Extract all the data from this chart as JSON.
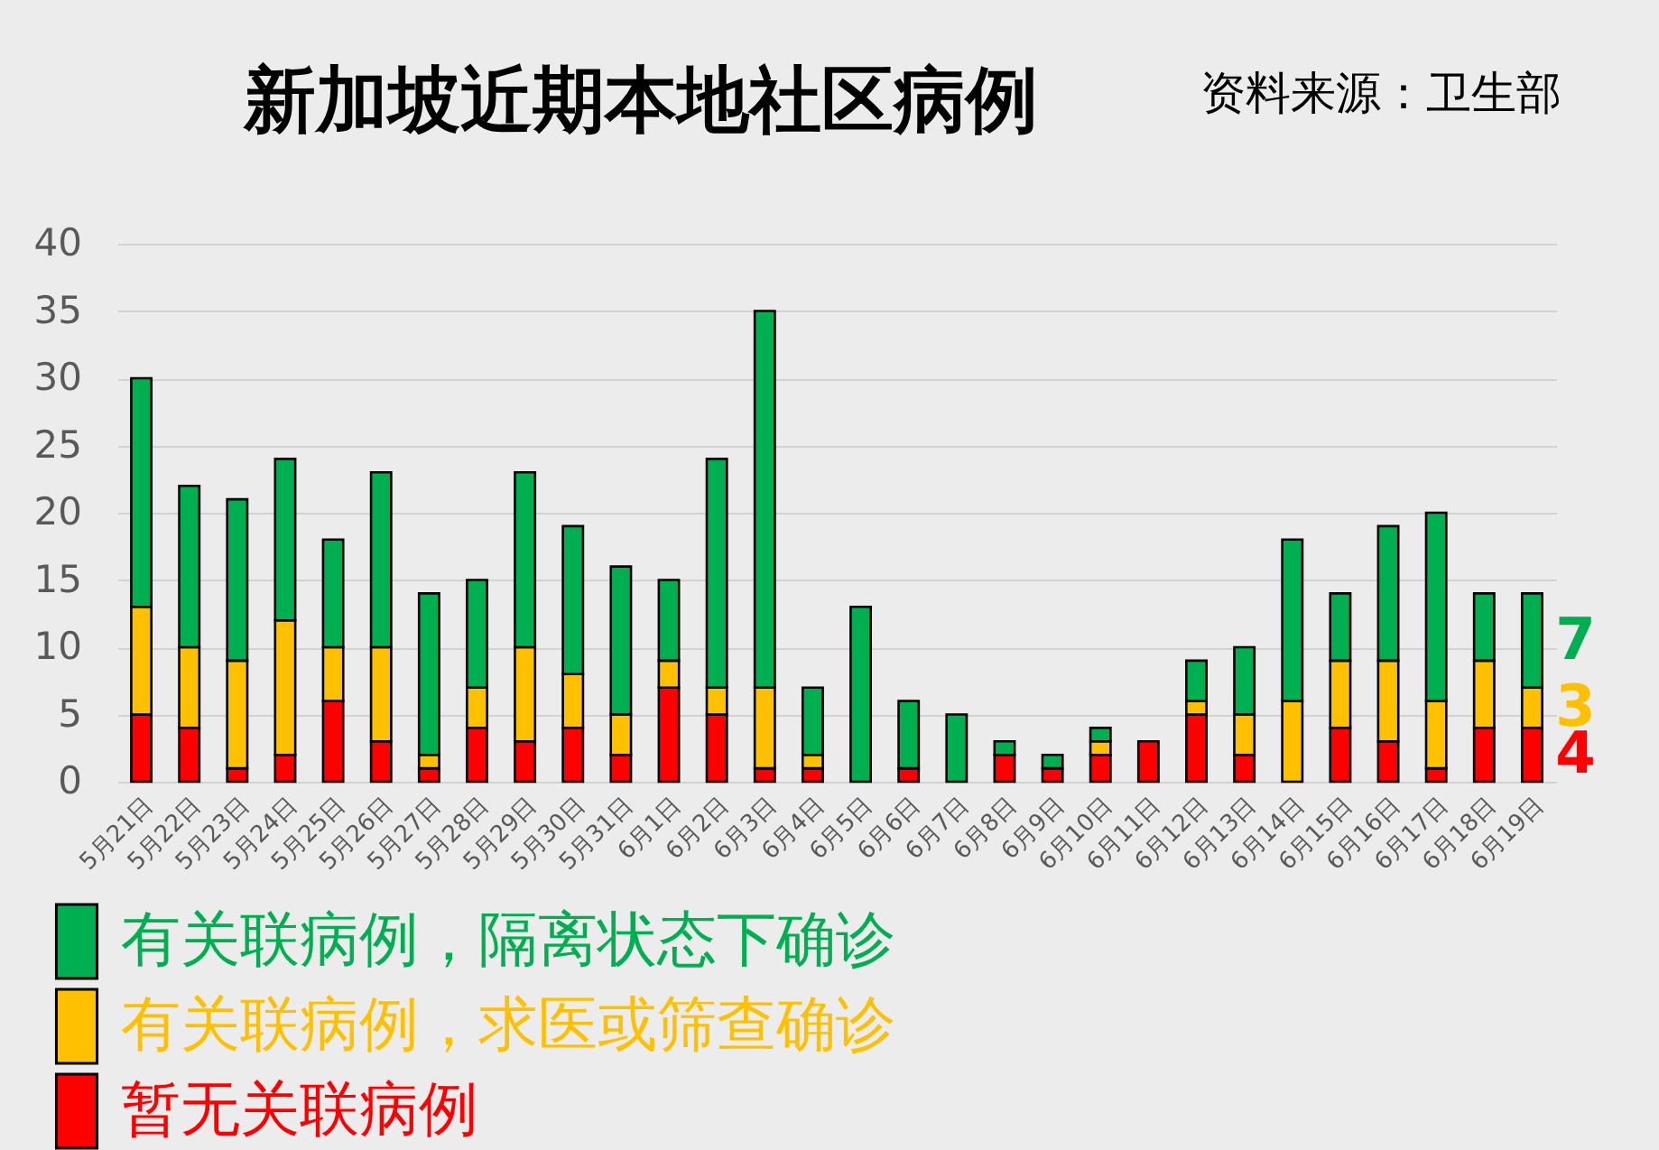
{
  "chart_data": {
    "type": "bar",
    "title": "新加坡近期本地社区病例",
    "annotations": [
      "资料来源：卫生部"
    ],
    "categories": [
      "5月21日",
      "5月22日",
      "5月23日",
      "5月24日",
      "5月25日",
      "5月26日",
      "5月27日",
      "5月28日",
      "5月29日",
      "5月30日",
      "5月31日",
      "6月1日",
      "6月2日",
      "6月3日",
      "6月4日",
      "6月5日",
      "6月6日",
      "6月7日",
      "6月8日",
      "6月9日",
      "6月10日",
      "6月11日",
      "6月12日",
      "6月13日",
      "6月14日",
      "6月15日",
      "6月16日",
      "6月17日",
      "6月18日",
      "6月19日"
    ],
    "series": [
      {
        "name": "暂无关联病例",
        "color": "#ff0000",
        "values": [
          5,
          4,
          1,
          2,
          6,
          3,
          1,
          4,
          3,
          4,
          2,
          7,
          5,
          1,
          1,
          0,
          1,
          0,
          2,
          1,
          2,
          3,
          5,
          2,
          0,
          4,
          3,
          1,
          4,
          4
        ],
        "value_labels": [
          null,
          null,
          null,
          null,
          null,
          null,
          null,
          null,
          null,
          null,
          null,
          null,
          null,
          null,
          null,
          null,
          null,
          null,
          null,
          null,
          null,
          null,
          null,
          null,
          null,
          null,
          null,
          null,
          null,
          "4"
        ]
      },
      {
        "name": "有关联病例，求医或筛查确诊",
        "color": "#ffc000",
        "values": [
          8,
          6,
          8,
          10,
          4,
          7,
          1,
          3,
          7,
          4,
          3,
          2,
          2,
          6,
          1,
          0,
          0,
          0,
          0,
          0,
          1,
          0,
          1,
          3,
          6,
          5,
          6,
          5,
          5,
          3
        ],
        "value_labels": [
          null,
          null,
          null,
          null,
          null,
          null,
          null,
          null,
          null,
          null,
          null,
          null,
          null,
          null,
          null,
          null,
          null,
          null,
          null,
          null,
          null,
          null,
          null,
          null,
          null,
          null,
          null,
          null,
          null,
          "3"
        ]
      },
      {
        "name": "有关联病例，隔离状态下确诊",
        "color": "#00b050",
        "values": [
          17,
          12,
          12,
          12,
          8,
          13,
          12,
          8,
          13,
          11,
          11,
          6,
          17,
          28,
          5,
          13,
          5,
          5,
          1,
          1,
          1,
          0,
          3,
          5,
          12,
          5,
          10,
          14,
          5,
          7
        ],
        "value_labels": [
          null,
          null,
          null,
          null,
          null,
          null,
          null,
          null,
          null,
          null,
          null,
          null,
          null,
          null,
          null,
          null,
          null,
          null,
          null,
          null,
          null,
          null,
          null,
          null,
          null,
          null,
          null,
          null,
          null,
          "7"
        ]
      }
    ],
    "stacked": true,
    "ylim": [
      0,
      40
    ],
    "yticks": [
      0,
      5,
      10,
      15,
      20,
      25,
      30,
      35,
      40
    ],
    "grid": "y",
    "legend": "bottom left"
  }
}
